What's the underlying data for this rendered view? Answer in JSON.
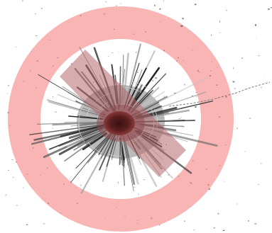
{
  "image": {
    "subject": "bullet-hole-prohibition-symbol",
    "colors": {
      "background": "#ffffff",
      "prohibition_sign": "#f9b4b4",
      "crack_dark": "#2b2b2b",
      "crack_mid": "#6a6a6a",
      "crack_light": "#b8b8b8",
      "hole_center": "#5a1e1e",
      "tinted_band": "#b5676b"
    },
    "icons": [
      "prohibition-sign-icon",
      "bullet-hole-icon"
    ]
  }
}
